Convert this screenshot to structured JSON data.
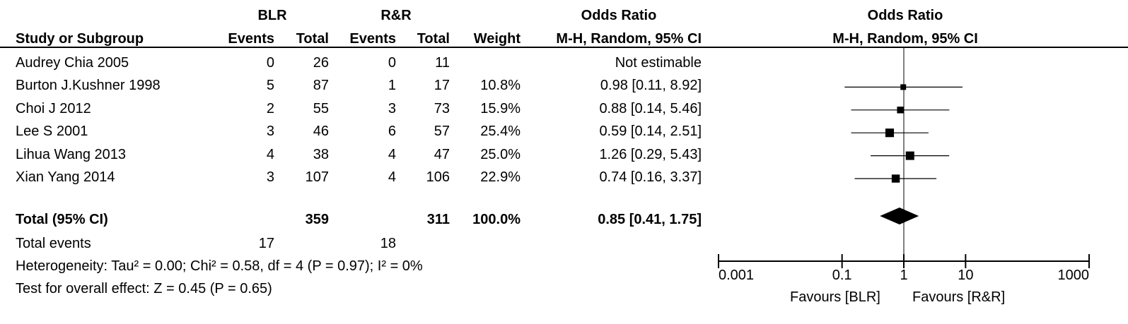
{
  "header": {
    "group1": "BLR",
    "group2": "R&R",
    "or_title": "Odds Ratio",
    "or_method": "M-H, Random, 95% CI",
    "plot_title": "Odds Ratio",
    "plot_method": "M-H, Random, 95% CI",
    "study_col": "Study or Subgroup",
    "events": "Events",
    "total": "Total",
    "weight": "Weight"
  },
  "studies": [
    {
      "name": "Audrey Chia 2005",
      "e1": "0",
      "n1": "26",
      "e2": "0",
      "n2": "11",
      "weight": "",
      "ci": "Not estimable"
    },
    {
      "name": "Burton J.Kushner 1998",
      "e1": "5",
      "n1": "87",
      "e2": "1",
      "n2": "17",
      "weight": "10.8%",
      "ci": "0.98 [0.11, 8.92]"
    },
    {
      "name": "Choi J 2012",
      "e1": "2",
      "n1": "55",
      "e2": "3",
      "n2": "73",
      "weight": "15.9%",
      "ci": "0.88 [0.14, 5.46]"
    },
    {
      "name": "Lee S 2001",
      "e1": "3",
      "n1": "46",
      "e2": "6",
      "n2": "57",
      "weight": "25.4%",
      "ci": "0.59 [0.14, 2.51]"
    },
    {
      "name": "Lihua Wang 2013",
      "e1": "4",
      "n1": "38",
      "e2": "4",
      "n2": "47",
      "weight": "25.0%",
      "ci": "1.26 [0.29, 5.43]"
    },
    {
      "name": "Xian Yang  2014",
      "e1": "3",
      "n1": "107",
      "e2": "4",
      "n2": "106",
      "weight": "22.9%",
      "ci": "0.74 [0.16, 3.37]"
    }
  ],
  "total": {
    "label": "Total (95% CI)",
    "n1": "359",
    "n2": "311",
    "weight": "100.0%",
    "ci": "0.85 [0.41, 1.75]"
  },
  "events": {
    "label": "Total events",
    "e1": "17",
    "e2": "18"
  },
  "heterogeneity": "Heterogeneity: Tau² = 0.00; Chi² = 0.58, df = 4 (P = 0.97); I² = 0%",
  "overall_effect": "Test for overall effect: Z = 0.45 (P = 0.65)",
  "axis": {
    "ticks": [
      "0.001",
      "0.1",
      "1",
      "10",
      "1000"
    ],
    "favours_left": "Favours [BLR]",
    "favours_right": "Favours [R&R]"
  },
  "chart_data": {
    "type": "forest",
    "scale": "log",
    "xlim": [
      0.001,
      1000
    ],
    "ticks": [
      0.001,
      0.1,
      1,
      10,
      1000
    ],
    "points": [
      {
        "study": "Burton J.Kushner 1998",
        "or": 0.98,
        "lo": 0.11,
        "hi": 8.92,
        "weight": 10.8
      },
      {
        "study": "Choi J 2012",
        "or": 0.88,
        "lo": 0.14,
        "hi": 5.46,
        "weight": 15.9
      },
      {
        "study": "Lee S 2001",
        "or": 0.59,
        "lo": 0.14,
        "hi": 2.51,
        "weight": 25.4
      },
      {
        "study": "Lihua Wang 2013",
        "or": 1.26,
        "lo": 0.29,
        "hi": 5.43,
        "weight": 25.0
      },
      {
        "study": "Xian Yang  2014",
        "or": 0.74,
        "lo": 0.16,
        "hi": 3.37,
        "weight": 22.9
      }
    ],
    "pooled": {
      "or": 0.85,
      "lo": 0.41,
      "hi": 1.75
    }
  }
}
